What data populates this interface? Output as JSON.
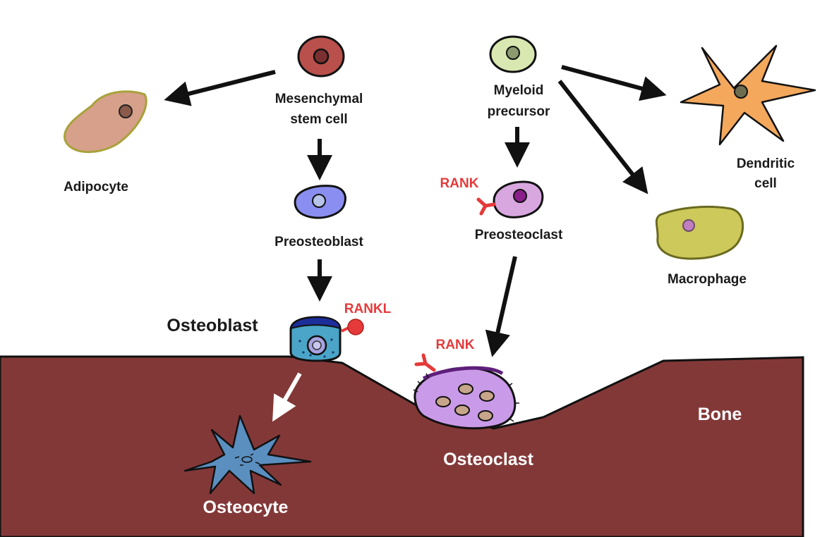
{
  "labels": {
    "msc_line1": "Mesenchymal",
    "msc_line2": "stem cell",
    "adipocyte": "Adipocyte",
    "preosteoblast": "Preosteoblast",
    "osteoblast": "Osteoblast",
    "rankl": "RANKL",
    "osteocyte": "Osteocyte",
    "myeloid_line1": "Myeloid",
    "myeloid_line2": "precursor",
    "rank_preosteoclast": "RANK",
    "preosteoclast": "Preosteoclast",
    "rank_osteoclast": "RANK",
    "osteoclast": "Osteoclast",
    "dendritic_line1": "Dendritic",
    "dendritic_line2": "cell",
    "macrophage": "Macrophage",
    "bone": "Bone"
  },
  "colors": {
    "bone": "#833838",
    "mesenchymal_stem_cell": "#b9504c",
    "adipocyte": "#d6a08a",
    "preosteoblast": "#8a8ef0",
    "osteoblast": "#4aa5c8",
    "osteocyte": "#5a8fc0",
    "myeloid_precursor": "#d8e8b0",
    "preosteoclast": "#d9a7e0",
    "osteoclast": "#c99ae8",
    "dendritic_cell": "#f3a85c",
    "macrophage": "#cdc95a",
    "rank_label": "#e53a3a"
  }
}
